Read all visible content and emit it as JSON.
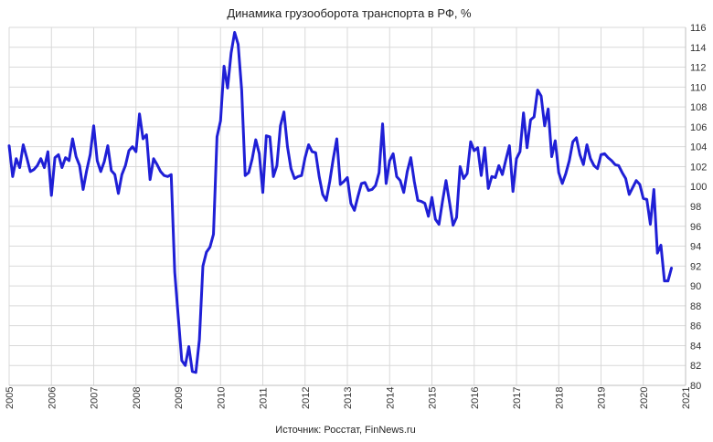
{
  "chart_data": {
    "type": "line",
    "title": "Динамика грузооборота транспорта в РФ, %",
    "source": "Источник: Росстат, FinNews.ru",
    "xlabel": "",
    "ylabel": "",
    "xlim": [
      2005,
      2021
    ],
    "ylim": [
      80,
      116
    ],
    "x_ticks": [
      "2005",
      "2006",
      "2007",
      "2008",
      "2009",
      "2010",
      "2011",
      "2012",
      "2013",
      "2014",
      "2015",
      "2016",
      "2017",
      "2018",
      "2019",
      "2020",
      "2021"
    ],
    "y_ticks": [
      "80",
      "82",
      "84",
      "86",
      "88",
      "90",
      "92",
      "94",
      "96",
      "98",
      "100",
      "102",
      "104",
      "106",
      "108",
      "110",
      "112",
      "114",
      "116"
    ],
    "grid": true,
    "line_color": "#1f1fd6",
    "series": [
      {
        "start_year": 2005,
        "frequency": "monthly",
        "values": [
          104.1,
          101.0,
          102.8,
          101.9,
          104.2,
          102.9,
          101.5,
          101.7,
          102.1,
          102.8,
          101.9,
          103.5,
          99.1,
          102.9,
          103.2,
          101.9,
          102.9,
          102.6,
          104.8,
          103.0,
          102.1,
          99.7,
          101.6,
          103.2,
          106.1,
          102.6,
          101.5,
          102.5,
          104.1,
          101.6,
          101.2,
          99.3,
          101.2,
          102.1,
          103.6,
          104.0,
          103.5,
          107.3,
          104.8,
          105.2,
          100.7,
          102.8,
          102.2,
          101.5,
          101.1,
          101.0,
          101.2,
          91.4,
          86.9,
          82.5,
          82.0,
          83.9,
          81.4,
          81.3,
          84.6,
          92.0,
          93.4,
          93.9,
          95.2,
          105.0,
          106.6,
          112.1,
          109.9,
          113.4,
          115.5,
          114.3,
          109.7,
          101.1,
          101.4,
          102.8,
          104.7,
          103.3,
          99.4,
          105.1,
          105.0,
          101.0,
          102.1,
          106.1,
          107.5,
          104.0,
          101.8,
          100.8,
          101.0,
          101.1,
          102.9,
          104.2,
          103.5,
          103.4,
          101.0,
          99.2,
          98.6,
          100.5,
          102.8,
          104.8,
          100.2,
          100.5,
          100.9,
          98.3,
          97.6,
          99.0,
          100.3,
          100.4,
          99.6,
          99.7,
          100.1,
          101.4,
          106.3,
          100.3,
          102.6,
          103.3,
          101.0,
          100.6,
          99.4,
          101.5,
          102.9,
          100.5,
          98.6,
          98.5,
          98.3,
          97.0,
          98.9,
          96.7,
          96.2,
          98.5,
          100.6,
          98.4,
          96.1,
          96.9,
          102.0,
          100.8,
          101.3,
          104.5,
          103.6,
          103.9,
          101.1,
          103.9,
          99.8,
          101.0,
          100.9,
          102.1,
          101.2,
          102.7,
          104.1,
          99.5,
          102.8,
          103.5,
          107.4,
          103.9,
          106.7,
          107.0,
          109.7,
          109.1,
          106.1,
          107.8,
          103.0,
          104.6,
          101.4,
          100.3,
          101.3,
          102.6,
          104.5,
          104.9,
          103.2,
          102.2,
          104.2,
          102.8,
          102.1,
          101.8,
          103.2,
          103.3,
          102.9,
          102.6,
          102.2,
          102.1,
          101.4,
          100.8,
          99.2,
          99.9,
          100.6,
          100.2,
          98.8,
          98.7,
          96.2,
          99.7,
          93.3,
          94.1,
          90.5,
          90.5,
          91.8
        ]
      }
    ]
  }
}
